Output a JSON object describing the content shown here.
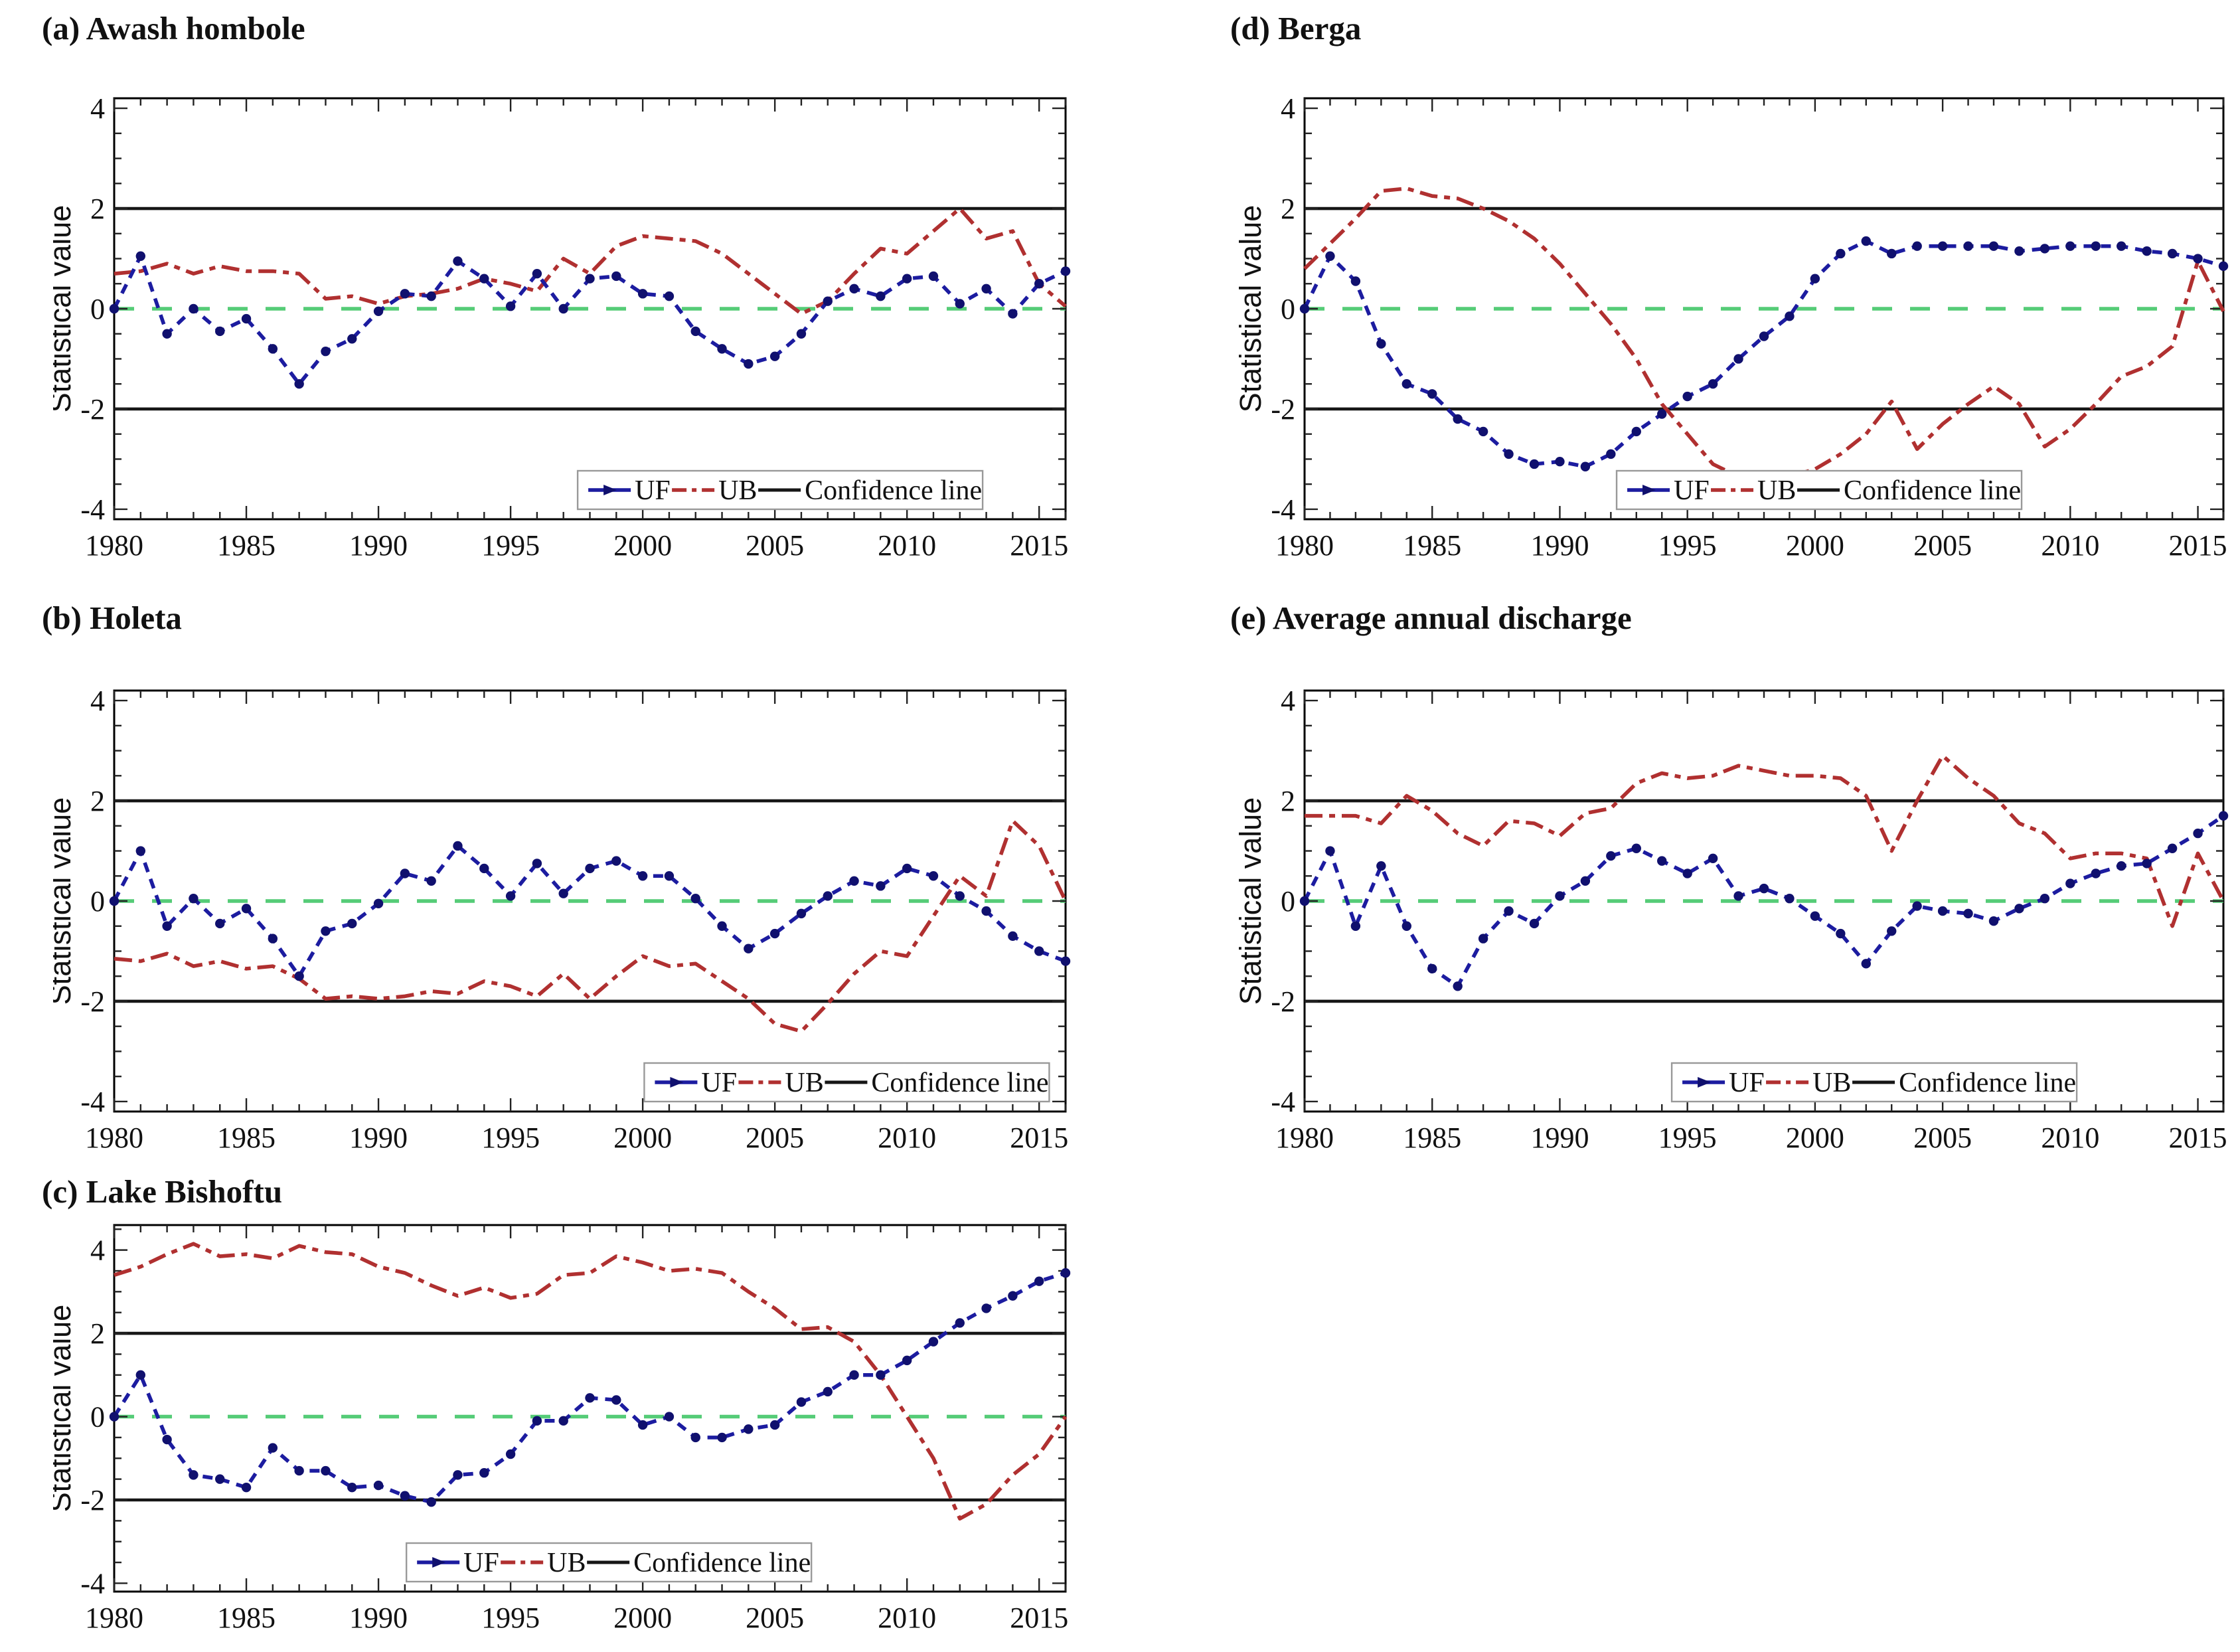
{
  "figure": {
    "ylabel": "Statistical value",
    "legend": {
      "uf": "UF",
      "ub": "UB",
      "confidence": "Confidence line"
    },
    "colors": {
      "uf": "#1c1ca0",
      "uf_marker": "#10106e",
      "ub": "#b03030",
      "zero_line": "#55cc77",
      "confidence_line": "#161616",
      "axis": "#222222",
      "text": "#111111"
    }
  },
  "chart_data": [
    {
      "id": "a",
      "type": "line",
      "title": "(a) Awash hombole",
      "ylabel": "Statistical value",
      "x_start": 1980,
      "xlim": [
        1980,
        2016
      ],
      "ylim": [
        -4.2,
        4.2
      ],
      "xticks": [
        1980,
        1985,
        1990,
        1995,
        2000,
        2005,
        2010,
        2015
      ],
      "yticks": [
        -4,
        -2,
        0,
        2,
        4
      ],
      "confidence_values": [
        2,
        -2
      ],
      "zero_value": 0,
      "legend_entries": [
        "UF",
        "UB",
        "Confidence line"
      ],
      "series": [
        {
          "name": "UF",
          "values": [
            0,
            1.05,
            -0.5,
            0,
            -0.45,
            -0.2,
            -0.8,
            -1.5,
            -0.85,
            -0.6,
            -0.05,
            0.3,
            0.25,
            0.95,
            0.6,
            0.05,
            0.7,
            0,
            0.6,
            0.65,
            0.3,
            0.25,
            -0.45,
            -0.8,
            -1.1,
            -0.95,
            -0.5,
            0.15,
            0.4,
            0.25,
            0.6,
            0.65,
            0.1,
            0.4,
            -0.1,
            0.5,
            0.75
          ]
        },
        {
          "name": "UB",
          "values": [
            0.7,
            0.75,
            0.9,
            0.7,
            0.85,
            0.75,
            0.75,
            0.7,
            0.2,
            0.25,
            0.1,
            0.25,
            0.3,
            0.4,
            0.6,
            0.5,
            0.35,
            1.0,
            0.7,
            1.25,
            1.45,
            1.4,
            1.35,
            1.1,
            0.7,
            0.3,
            -0.1,
            0.15,
            0.7,
            1.2,
            1.1,
            1.55,
            2.0,
            1.4,
            1.55,
            0.5,
            0.05
          ]
        }
      ]
    },
    {
      "id": "b",
      "type": "line",
      "title": "(b) Holeta",
      "ylabel": "Statistical value",
      "x_start": 1980,
      "xlim": [
        1980,
        2016
      ],
      "ylim": [
        -4.2,
        4.2
      ],
      "xticks": [
        1980,
        1985,
        1990,
        1995,
        2000,
        2005,
        2010,
        2015
      ],
      "yticks": [
        -4,
        -2,
        0,
        2,
        4
      ],
      "confidence_values": [
        2,
        -2
      ],
      "zero_value": 0,
      "legend_entries": [
        "UF",
        "UB",
        "Confidence line"
      ],
      "series": [
        {
          "name": "UF",
          "values": [
            0,
            1.0,
            -0.5,
            0.05,
            -0.45,
            -0.15,
            -0.75,
            -1.5,
            -0.6,
            -0.45,
            -0.05,
            0.55,
            0.4,
            1.1,
            0.65,
            0.1,
            0.75,
            0.15,
            0.65,
            0.8,
            0.5,
            0.5,
            0.05,
            -0.5,
            -0.95,
            -0.65,
            -0.25,
            0.1,
            0.4,
            0.3,
            0.65,
            0.5,
            0.1,
            -0.2,
            -0.7,
            -1.0,
            -1.2
          ]
        },
        {
          "name": "UB",
          "values": [
            -1.15,
            -1.2,
            -1.05,
            -1.3,
            -1.2,
            -1.35,
            -1.3,
            -1.55,
            -1.95,
            -1.9,
            -1.95,
            -1.9,
            -1.8,
            -1.85,
            -1.6,
            -1.7,
            -1.9,
            -1.45,
            -1.95,
            -1.5,
            -1.1,
            -1.3,
            -1.25,
            -1.6,
            -1.95,
            -2.45,
            -2.6,
            -2.05,
            -1.45,
            -1.0,
            -1.1,
            -0.3,
            0.5,
            0.1,
            1.6,
            1.1,
            0.0
          ]
        }
      ]
    },
    {
      "id": "c",
      "type": "line",
      "title": "(c) Lake Bishoftu",
      "ylabel": "Statistical value",
      "x_start": 1980,
      "xlim": [
        1980,
        2016
      ],
      "ylim": [
        -4.2,
        4.6
      ],
      "xticks": [
        1980,
        1985,
        1990,
        1995,
        2000,
        2005,
        2010,
        2015
      ],
      "yticks": [
        -4,
        -2,
        0,
        2,
        4
      ],
      "confidence_values": [
        2,
        -2
      ],
      "zero_value": 0,
      "legend_entries": [
        "UF",
        "UB",
        "Confidence line"
      ],
      "series": [
        {
          "name": "UF",
          "values": [
            0,
            1.0,
            -0.55,
            -1.4,
            -1.5,
            -1.7,
            -0.75,
            -1.3,
            -1.3,
            -1.7,
            -1.65,
            -1.9,
            -2.05,
            -1.4,
            -1.35,
            -0.9,
            -0.1,
            -0.1,
            0.45,
            0.4,
            -0.2,
            0.0,
            -0.5,
            -0.5,
            -0.3,
            -0.2,
            0.35,
            0.6,
            1.0,
            1.0,
            1.35,
            1.8,
            2.25,
            2.6,
            2.9,
            3.25,
            3.45
          ]
        },
        {
          "name": "UB",
          "values": [
            3.4,
            3.6,
            3.9,
            4.15,
            3.85,
            3.9,
            3.8,
            4.1,
            3.95,
            3.9,
            3.6,
            3.45,
            3.15,
            2.9,
            3.1,
            2.85,
            2.95,
            3.4,
            3.45,
            3.85,
            3.7,
            3.5,
            3.55,
            3.45,
            3.0,
            2.6,
            2.1,
            2.15,
            1.8,
            1.0,
            0.0,
            -1.0,
            -2.45,
            -2.1,
            -1.4,
            -0.9,
            0.0
          ]
        }
      ]
    },
    {
      "id": "d",
      "type": "line",
      "title": "(d) Berga",
      "ylabel": "Statistical value",
      "x_start": 1980,
      "xlim": [
        1980,
        2016
      ],
      "ylim": [
        -4.2,
        4.2
      ],
      "xticks": [
        1980,
        1985,
        1990,
        1995,
        2000,
        2005,
        2010,
        2015
      ],
      "yticks": [
        -4,
        -2,
        0,
        2,
        4
      ],
      "confidence_values": [
        2,
        -2
      ],
      "zero_value": 0,
      "legend_entries": [
        "UF",
        "UB",
        "Confidence line"
      ],
      "series": [
        {
          "name": "UF",
          "values": [
            0,
            1.05,
            0.55,
            -0.7,
            -1.5,
            -1.7,
            -2.2,
            -2.45,
            -2.9,
            -3.1,
            -3.05,
            -3.15,
            -2.9,
            -2.45,
            -2.1,
            -1.75,
            -1.5,
            -1.0,
            -0.55,
            -0.15,
            0.6,
            1.1,
            1.35,
            1.1,
            1.25,
            1.25,
            1.25,
            1.25,
            1.15,
            1.2,
            1.25,
            1.25,
            1.25,
            1.15,
            1.1,
            1.0,
            0.85
          ]
        },
        {
          "name": "UB",
          "values": [
            0.8,
            1.3,
            1.8,
            2.35,
            2.4,
            2.25,
            2.2,
            2.0,
            1.75,
            1.4,
            0.9,
            0.3,
            -0.3,
            -1.0,
            -1.9,
            -2.5,
            -3.1,
            -3.35,
            -3.4,
            -3.35,
            -3.2,
            -2.9,
            -2.5,
            -1.85,
            -2.8,
            -2.3,
            -1.9,
            -1.55,
            -1.9,
            -2.75,
            -2.4,
            -1.9,
            -1.35,
            -1.15,
            -0.75,
            0.95,
            -0.05
          ]
        }
      ]
    },
    {
      "id": "e",
      "type": "line",
      "title": "(e) Average annual discharge",
      "ylabel": "Statistical value",
      "x_start": 1980,
      "xlim": [
        1980,
        2016
      ],
      "ylim": [
        -4.2,
        4.2
      ],
      "xticks": [
        1980,
        1985,
        1990,
        1995,
        2000,
        2005,
        2010,
        2015
      ],
      "yticks": [
        -4,
        -2,
        0,
        2,
        4
      ],
      "confidence_values": [
        2,
        -2
      ],
      "zero_value": 0,
      "legend_entries": [
        "UF",
        "UB",
        "Confidence line"
      ],
      "series": [
        {
          "name": "UF",
          "values": [
            0,
            1.0,
            -0.5,
            0.7,
            -0.5,
            -1.35,
            -1.7,
            -0.75,
            -0.2,
            -0.45,
            0.1,
            0.4,
            0.9,
            1.05,
            0.8,
            0.55,
            0.85,
            0.1,
            0.25,
            0.05,
            -0.3,
            -0.65,
            -1.25,
            -0.6,
            -0.1,
            -0.2,
            -0.25,
            -0.4,
            -0.15,
            0.05,
            0.35,
            0.55,
            0.7,
            0.75,
            1.05,
            1.35,
            1.7
          ]
        },
        {
          "name": "UB",
          "values": [
            1.7,
            1.7,
            1.7,
            1.55,
            2.1,
            1.8,
            1.35,
            1.1,
            1.6,
            1.55,
            1.3,
            1.75,
            1.85,
            2.35,
            2.55,
            2.45,
            2.5,
            2.7,
            2.6,
            2.5,
            2.5,
            2.45,
            2.1,
            1.0,
            2.0,
            2.9,
            2.45,
            2.1,
            1.55,
            1.35,
            0.85,
            0.95,
            0.95,
            0.85,
            -0.5,
            0.95,
            0.0
          ]
        }
      ]
    }
  ]
}
